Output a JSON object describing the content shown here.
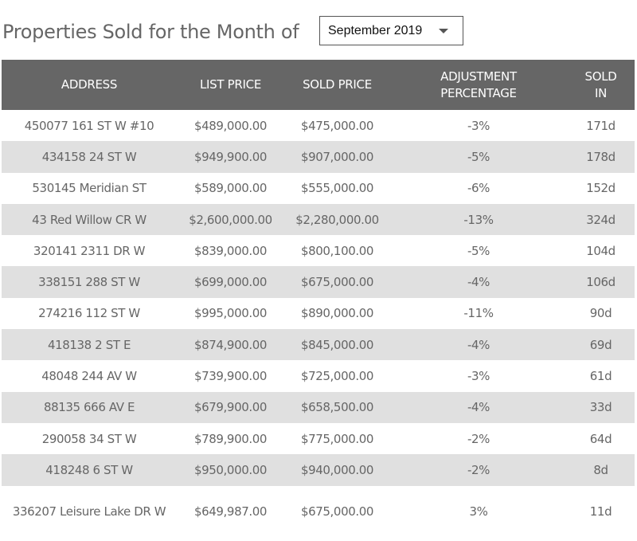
{
  "header": {
    "title": "Properties Sold for the Month of",
    "month_select": {
      "selected": "September 2019",
      "icon": "caret-down-icon"
    }
  },
  "table": {
    "columns": [
      {
        "line1": "ADDRESS",
        "line2": ""
      },
      {
        "line1": "LIST PRICE",
        "line2": ""
      },
      {
        "line1": "SOLD PRICE",
        "line2": ""
      },
      {
        "line1": "ADJUSTMENT",
        "line2": "PERCENTAGE"
      },
      {
        "line1": "SOLD",
        "line2": "IN"
      }
    ],
    "rows": [
      {
        "address": "450077 161 ST W #10",
        "list_price": "$489,000.00",
        "sold_price": "$475,000.00",
        "adjustment": "-3%",
        "sold_in": "171d"
      },
      {
        "address": "434158 24 ST W",
        "list_price": "$949,900.00",
        "sold_price": "$907,000.00",
        "adjustment": "-5%",
        "sold_in": "178d"
      },
      {
        "address": "530145 Meridian ST",
        "list_price": "$589,000.00",
        "sold_price": "$555,000.00",
        "adjustment": "-6%",
        "sold_in": "152d"
      },
      {
        "address": "43 Red Willow CR W",
        "list_price": "$2,600,000.00",
        "sold_price": "$2,280,000.00",
        "adjustment": "-13%",
        "sold_in": "324d"
      },
      {
        "address": "320141 2311 DR W",
        "list_price": "$839,000.00",
        "sold_price": "$800,100.00",
        "adjustment": "-5%",
        "sold_in": "104d"
      },
      {
        "address": "338151 288 ST W",
        "list_price": "$699,000.00",
        "sold_price": "$675,000.00",
        "adjustment": "-4%",
        "sold_in": "106d"
      },
      {
        "address": "274216 112 ST W",
        "list_price": "$995,000.00",
        "sold_price": "$890,000.00",
        "adjustment": "-11%",
        "sold_in": "90d"
      },
      {
        "address": "418138 2 ST E",
        "list_price": "$874,900.00",
        "sold_price": "$845,000.00",
        "adjustment": "-4%",
        "sold_in": "69d"
      },
      {
        "address": "48048 244 AV W",
        "list_price": "$739,900.00",
        "sold_price": "$725,000.00",
        "adjustment": "-3%",
        "sold_in": "61d"
      },
      {
        "address": "88135 666 AV E",
        "list_price": "$679,900.00",
        "sold_price": "$658,500.00",
        "adjustment": "-4%",
        "sold_in": "33d"
      },
      {
        "address": "290058 34 ST W",
        "list_price": "$789,900.00",
        "sold_price": "$775,000.00",
        "adjustment": "-2%",
        "sold_in": "64d"
      },
      {
        "address": "418248 6 ST W",
        "list_price": "$950,000.00",
        "sold_price": "$940,000.00",
        "adjustment": "-2%",
        "sold_in": "8d"
      },
      {
        "address": "336207 Leisure Lake DR W",
        "list_price": "$649,987.00",
        "sold_price": "$675,000.00",
        "adjustment": "3%",
        "sold_in": "11d"
      }
    ]
  },
  "colors": {
    "header_bg": "#666666",
    "row_alt_bg": "#e0e0e0",
    "text": "#666666"
  }
}
